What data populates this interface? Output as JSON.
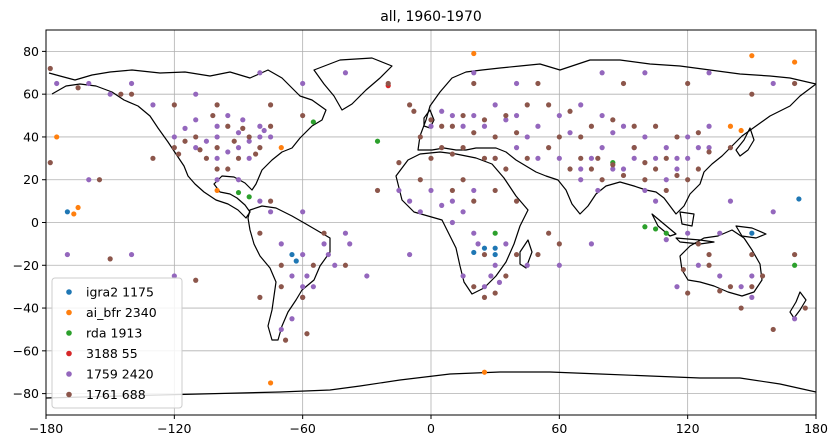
{
  "chart_data": {
    "type": "scatter",
    "title": "all, 1960-1970",
    "xlabel": "",
    "ylabel": "",
    "xlim": [
      -180,
      180
    ],
    "ylim": [
      -90,
      90
    ],
    "xticks": [
      -180,
      -120,
      -60,
      0,
      60,
      120,
      180
    ],
    "yticks": [
      -80,
      -60,
      -40,
      -20,
      0,
      20,
      40,
      60,
      80
    ],
    "grid": true,
    "legend_position": "lower-left",
    "series": [
      {
        "name": "igra2 1175",
        "color": "#1f77b4",
        "points": [
          [
            -65,
            -15
          ],
          [
            -63,
            -18
          ],
          [
            25,
            -12
          ],
          [
            30,
            -12
          ],
          [
            30,
            -15
          ],
          [
            20,
            -14
          ],
          [
            172,
            11
          ],
          [
            150,
            -5
          ],
          [
            -170,
            5
          ]
        ]
      },
      {
        "name": "ai_bfr 2340",
        "color": "#ff7f0e",
        "points": [
          [
            -175,
            40
          ],
          [
            -165,
            7
          ],
          [
            -167,
            4
          ],
          [
            -75,
            -75
          ],
          [
            -70,
            35
          ],
          [
            20,
            79
          ],
          [
            150,
            78
          ],
          [
            170,
            75
          ],
          [
            25,
            -70
          ],
          [
            -100,
            15
          ],
          [
            140,
            45
          ],
          [
            145,
            43
          ]
        ]
      },
      {
        "name": "rda 1913",
        "color": "#2ca02c",
        "points": [
          [
            -55,
            47
          ],
          [
            -85,
            12
          ],
          [
            105,
            -3
          ],
          [
            110,
            -5
          ],
          [
            100,
            -2
          ],
          [
            85,
            28
          ],
          [
            -90,
            14
          ],
          [
            30,
            -5
          ],
          [
            170,
            -20
          ],
          [
            -25,
            38
          ]
        ]
      },
      {
        "name": "3188 55",
        "color": "#d62728",
        "points": [
          [
            -20,
            64
          ]
        ]
      },
      {
        "name": "1759 2420",
        "color": "#9467bd",
        "points": [
          [
            -120,
            40
          ],
          [
            -110,
            35
          ],
          [
            -100,
            30
          ],
          [
            -90,
            35
          ],
          [
            -80,
            40
          ],
          [
            -100,
            45
          ],
          [
            -110,
            48
          ],
          [
            -95,
            50
          ],
          [
            -80,
            45
          ],
          [
            -75,
            40
          ],
          [
            -85,
            30
          ],
          [
            -100,
            20
          ],
          [
            -90,
            20
          ],
          [
            -80,
            10
          ],
          [
            -75,
            5
          ],
          [
            -70,
            -10
          ],
          [
            -60,
            -15
          ],
          [
            -50,
            -10
          ],
          [
            -45,
            -20
          ],
          [
            -55,
            -30
          ],
          [
            -60,
            -35
          ],
          [
            -65,
            -45
          ],
          [
            -70,
            -50
          ],
          [
            -40,
            -5
          ],
          [
            -60,
            5
          ],
          [
            0,
            45
          ],
          [
            10,
            50
          ],
          [
            20,
            50
          ],
          [
            30,
            55
          ],
          [
            40,
            50
          ],
          [
            50,
            45
          ],
          [
            60,
            50
          ],
          [
            70,
            55
          ],
          [
            80,
            50
          ],
          [
            90,
            45
          ],
          [
            100,
            40
          ],
          [
            110,
            35
          ],
          [
            120,
            40
          ],
          [
            130,
            45
          ],
          [
            105,
            30
          ],
          [
            95,
            35
          ],
          [
            80,
            35
          ],
          [
            75,
            30
          ],
          [
            70,
            25
          ],
          [
            60,
            30
          ],
          [
            50,
            30
          ],
          [
            40,
            35
          ],
          [
            30,
            30
          ],
          [
            20,
            15
          ],
          [
            10,
            10
          ],
          [
            0,
            15
          ],
          [
            -10,
            10
          ],
          [
            -5,
            5
          ],
          [
            10,
            0
          ],
          [
            20,
            -5
          ],
          [
            30,
            -20
          ],
          [
            25,
            -30
          ],
          [
            15,
            -25
          ],
          [
            35,
            -10
          ],
          [
            45,
            -20
          ],
          [
            100,
            15
          ],
          [
            105,
            10
          ],
          [
            110,
            20
          ],
          [
            115,
            25
          ],
          [
            120,
            30
          ],
          [
            130,
            35
          ],
          [
            135,
            -25
          ],
          [
            125,
            -20
          ],
          [
            145,
            -30
          ],
          [
            150,
            -35
          ],
          [
            115,
            -30
          ],
          [
            -150,
            60
          ],
          [
            -140,
            65
          ],
          [
            -160,
            65
          ],
          [
            -160,
            20
          ],
          [
            -140,
            -15
          ],
          [
            -120,
            -25
          ],
          [
            140,
            10
          ],
          [
            160,
            5
          ],
          [
            -170,
            -15
          ],
          [
            -30,
            -25
          ],
          [
            -10,
            -15
          ],
          [
            60,
            -20
          ],
          [
            75,
            -10
          ],
          [
            170,
            -45
          ],
          [
            -80,
            70
          ],
          [
            -60,
            65
          ],
          [
            -40,
            70
          ],
          [
            80,
            70
          ],
          [
            100,
            70
          ],
          [
            130,
            70
          ],
          [
            160,
            65
          ],
          [
            -110,
            60
          ],
          [
            -130,
            55
          ],
          [
            20,
            70
          ],
          [
            40,
            65
          ],
          [
            -175,
            65
          ],
          [
            -100,
            40
          ],
          [
            -90,
            42
          ],
          [
            -85,
            38
          ],
          [
            -95,
            33
          ],
          [
            -105,
            38
          ],
          [
            -115,
            44
          ],
          [
            -88,
            48
          ],
          [
            -78,
            43
          ],
          [
            5,
            52
          ],
          [
            15,
            45
          ],
          [
            25,
            45
          ],
          [
            35,
            48
          ],
          [
            45,
            40
          ],
          [
            65,
            42
          ],
          [
            85,
            42
          ],
          [
            95,
            30
          ],
          [
            115,
            30
          ],
          [
            125,
            35
          ],
          [
            70,
            20
          ],
          [
            78,
            15
          ],
          [
            85,
            25
          ],
          [
            90,
            25
          ],
          [
            110,
            -8
          ],
          [
            120,
            -5
          ],
          [
            135,
            -5
          ],
          [
            150,
            -25
          ],
          [
            -60,
            -30
          ],
          [
            -58,
            -25
          ],
          [
            -48,
            -15
          ],
          [
            -38,
            -10
          ],
          [
            -65,
            -25
          ],
          [
            28,
            -25
          ],
          [
            32,
            -28
          ],
          [
            22,
            -10
          ],
          [
            15,
            5
          ],
          [
            5,
            8
          ],
          [
            -15,
            15
          ]
        ]
      },
      {
        "name": "1761 688",
        "color": "#8c564b",
        "points": [
          [
            -178,
            72
          ],
          [
            -178,
            28
          ],
          [
            -100,
            35
          ],
          [
            -90,
            30
          ],
          [
            -110,
            40
          ],
          [
            -120,
            35
          ],
          [
            -85,
            40
          ],
          [
            -80,
            35
          ],
          [
            -75,
            45
          ],
          [
            -95,
            45
          ],
          [
            -105,
            30
          ],
          [
            -115,
            38
          ],
          [
            -95,
            25
          ],
          [
            -100,
            25
          ],
          [
            5,
            45
          ],
          [
            15,
            50
          ],
          [
            25,
            48
          ],
          [
            35,
            50
          ],
          [
            45,
            55
          ],
          [
            55,
            55
          ],
          [
            65,
            52
          ],
          [
            75,
            45
          ],
          [
            85,
            48
          ],
          [
            95,
            45
          ],
          [
            105,
            45
          ],
          [
            115,
            40
          ],
          [
            125,
            42
          ],
          [
            105,
            25
          ],
          [
            100,
            20
          ],
          [
            90,
            22
          ],
          [
            80,
            20
          ],
          [
            75,
            25
          ],
          [
            70,
            30
          ],
          [
            65,
            25
          ],
          [
            55,
            35
          ],
          [
            45,
            30
          ],
          [
            35,
            25
          ],
          [
            25,
            30
          ],
          [
            15,
            35
          ],
          [
            5,
            35
          ],
          [
            -5,
            40
          ],
          [
            10,
            15
          ],
          [
            20,
            10
          ],
          [
            30,
            15
          ],
          [
            40,
            10
          ],
          [
            25,
            -15
          ],
          [
            35,
            -25
          ],
          [
            20,
            -30
          ],
          [
            110,
            15
          ],
          [
            120,
            20
          ],
          [
            125,
            25
          ],
          [
            140,
            35
          ],
          [
            140,
            -30
          ],
          [
            130,
            -15
          ],
          [
            150,
            -15
          ],
          [
            -165,
            63
          ],
          [
            -145,
            60
          ],
          [
            -120,
            55
          ],
          [
            -100,
            55
          ],
          [
            20,
            65
          ],
          [
            50,
            65
          ],
          [
            90,
            65
          ],
          [
            120,
            65
          ],
          [
            150,
            60
          ],
          [
            170,
            65
          ],
          [
            -60,
            -35
          ],
          [
            -70,
            -30
          ],
          [
            -70,
            -20
          ],
          [
            -40,
            -20
          ],
          [
            -80,
            -5
          ],
          [
            -75,
            10
          ],
          [
            175,
            -40
          ],
          [
            160,
            -50
          ],
          [
            -10,
            55
          ],
          [
            -20,
            65
          ],
          [
            30,
            -33
          ],
          [
            -50,
            -5
          ],
          [
            -55,
            -20
          ],
          [
            95,
            35
          ],
          [
            110,
            30
          ],
          [
            130,
            33
          ],
          [
            100,
            28
          ],
          [
            115,
            22
          ],
          [
            85,
            27
          ],
          [
            78,
            30
          ],
          [
            60,
            40
          ],
          [
            70,
            40
          ],
          [
            40,
            42
          ],
          [
            30,
            40
          ],
          [
            20,
            42
          ],
          [
            10,
            45
          ],
          [
            0,
            48
          ],
          [
            -8,
            52
          ],
          [
            -92,
            38
          ],
          [
            -82,
            32
          ],
          [
            -118,
            32
          ],
          [
            -108,
            34
          ],
          [
            -88,
            44
          ],
          [
            -102,
            50
          ],
          [
            -75,
            55
          ],
          [
            -60,
            50
          ],
          [
            -140,
            60
          ],
          [
            -155,
            20
          ],
          [
            -130,
            30
          ],
          [
            155,
            -25
          ],
          [
            145,
            -40
          ],
          [
            120,
            -33
          ],
          [
            118,
            -22
          ],
          [
            125,
            -10
          ],
          [
            170,
            -15
          ],
          [
            -150,
            -17
          ],
          [
            -110,
            -27
          ],
          [
            -80,
            -35
          ],
          [
            -58,
            -52
          ],
          [
            -68,
            -55
          ],
          [
            25,
            -35
          ],
          [
            40,
            -15
          ],
          [
            50,
            -15
          ],
          [
            60,
            -10
          ],
          [
            55,
            -5
          ],
          [
            -25,
            15
          ],
          [
            -15,
            28
          ],
          [
            0,
            30
          ],
          [
            10,
            32
          ],
          [
            30,
            30
          ],
          [
            -5,
            20
          ],
          [
            15,
            20
          ],
          [
            130,
            -20
          ],
          [
            150,
            -30
          ],
          [
            135,
            -32
          ]
        ]
      }
    ]
  }
}
